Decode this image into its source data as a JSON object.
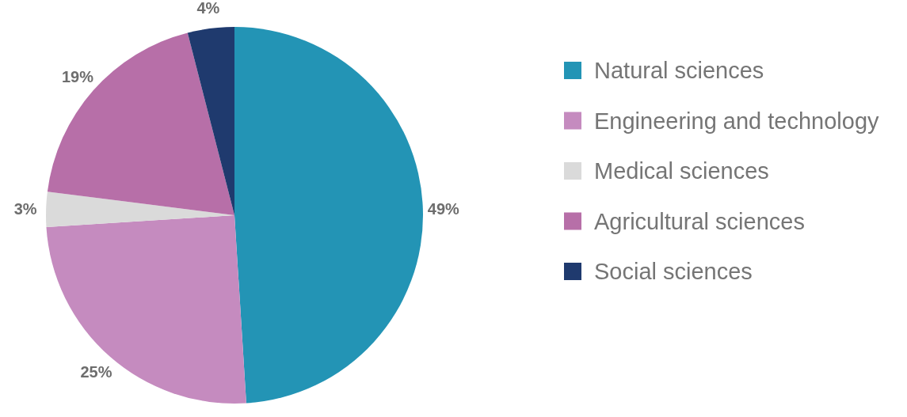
{
  "chart_data": {
    "type": "pie",
    "categories": [
      "Natural sciences",
      "Engineering and technology",
      "Medical sciences",
      "Agricultural sciences",
      "Social sciences"
    ],
    "values": [
      49,
      25,
      3,
      19,
      4
    ],
    "colors": [
      "#2394b5",
      "#c58bbf",
      "#dadada",
      "#b76fa8",
      "#1f3a6e"
    ],
    "value_labels": [
      "49%",
      "25%",
      "3%",
      "19%",
      "4%"
    ],
    "legend": "right"
  }
}
